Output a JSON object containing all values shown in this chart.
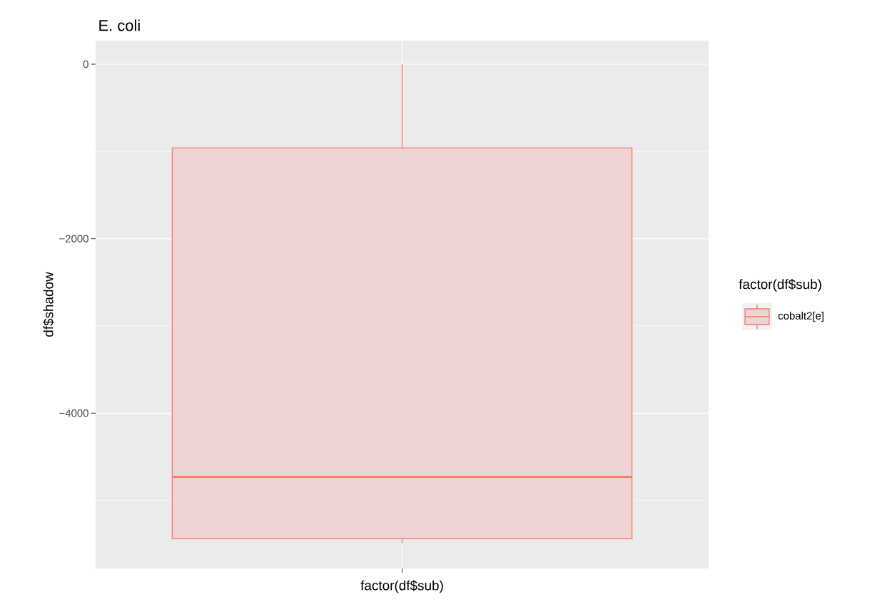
{
  "chart_data": {
    "type": "box",
    "title": "E. coli",
    "xlabel": "factor(df$sub)",
    "ylabel": "df$shadow",
    "legend_title": "factor(df$sub)",
    "legend": "right",
    "grid": true,
    "categories": [
      null
    ],
    "ylim": [
      -5780,
      270
    ],
    "yticks": [
      0,
      {
        "value": -2000,
        "label": "−2000"
      },
      {
        "value": -4000,
        "label": "−4000"
      }
    ],
    "series": [
      {
        "name": "cobalt2[e]",
        "color": "#f8766d",
        "boxes": [
          {
            "low": -5490,
            "q1": -5440,
            "median": -4730,
            "q3": -960,
            "high": 0
          }
        ]
      }
    ]
  }
}
